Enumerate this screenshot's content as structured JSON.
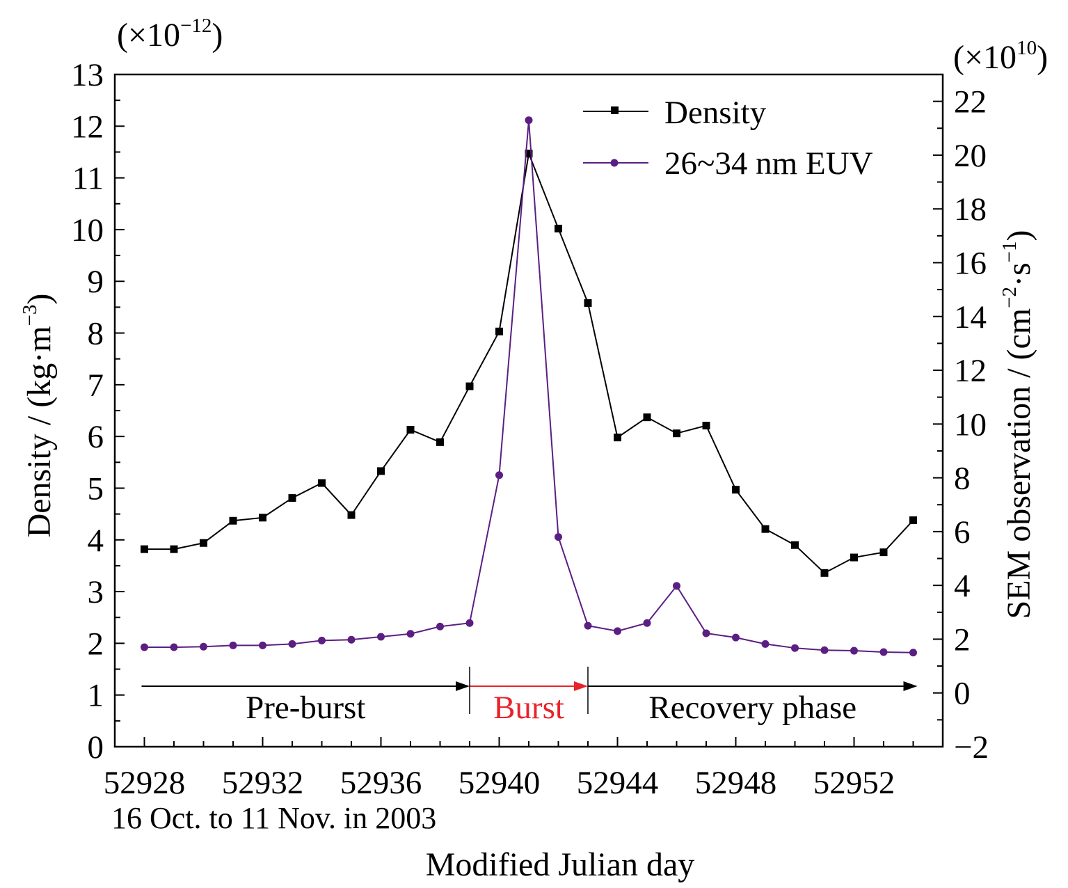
{
  "chart_data": {
    "type": "line",
    "xlabel": "Modified Julian day",
    "xsublabel": "16 Oct. to 11 Nov. in 2003",
    "ylabel": "Density / (kg·m",
    "ylabel_exp": "−3",
    "ylabel_end": ")",
    "y_multiplier": {
      "base": "(×10",
      "exp": "−12",
      "end": ")"
    },
    "y2label": "SEM observation / (cm",
    "y2label_exp1": "−2",
    "y2label_mid": "·s",
    "y2label_exp2": "−1",
    "y2label_end": ")",
    "y2_multiplier": {
      "base": "(×10",
      "exp": "10",
      "end": ")"
    },
    "xlim": [
      52927,
      52955
    ],
    "ylim": [
      0,
      13
    ],
    "y2lim": [
      -2,
      23
    ],
    "x_ticks": [
      52928,
      52932,
      52936,
      52940,
      52944,
      52948,
      52952
    ],
    "y_ticks": [
      0,
      1,
      2,
      3,
      4,
      5,
      6,
      7,
      8,
      9,
      10,
      11,
      12,
      13
    ],
    "y2_ticks": [
      -2,
      0,
      2,
      4,
      6,
      8,
      10,
      12,
      14,
      16,
      18,
      20,
      22
    ],
    "y2_tick_labels": [
      "−2",
      "0",
      "2",
      "4",
      "6",
      "8",
      "10",
      "12",
      "14",
      "16",
      "18",
      "20",
      "22"
    ],
    "legend_position": "top-right",
    "grid": false,
    "series": [
      {
        "name": "Density",
        "axis": "left",
        "color": "#000000",
        "marker": "square",
        "x": [
          52928,
          52929,
          52930,
          52931,
          52932,
          52933,
          52934,
          52935,
          52936,
          52937,
          52938,
          52939,
          52940,
          52941,
          52942,
          52943,
          52944,
          52945,
          52946,
          52947,
          52948,
          52949,
          52950,
          52951,
          52952,
          52953,
          52954
        ],
        "values": [
          3.82,
          3.82,
          3.94,
          4.37,
          4.43,
          4.81,
          5.1,
          4.48,
          5.33,
          6.13,
          5.89,
          6.97,
          8.03,
          11.47,
          10.02,
          8.58,
          5.98,
          6.37,
          6.06,
          6.21,
          4.97,
          4.21,
          3.9,
          3.36,
          3.66,
          3.76,
          4.38
        ]
      },
      {
        "name": "26~34 nm EUV",
        "axis": "right",
        "color": "#5b1e82",
        "marker": "circle",
        "x": [
          52928,
          52929,
          52930,
          52931,
          52932,
          52933,
          52934,
          52935,
          52936,
          52937,
          52938,
          52939,
          52940,
          52941,
          52942,
          52943,
          52944,
          52945,
          52946,
          52947,
          52948,
          52949,
          52950,
          52951,
          52952,
          52953,
          52954
        ],
        "values": [
          1.7,
          1.7,
          1.72,
          1.77,
          1.77,
          1.82,
          1.95,
          1.98,
          2.09,
          2.2,
          2.47,
          2.6,
          8.1,
          21.3,
          5.8,
          2.5,
          2.3,
          2.6,
          3.98,
          2.22,
          2.06,
          1.82,
          1.67,
          1.59,
          1.57,
          1.52,
          1.5
        ]
      }
    ],
    "phases": [
      {
        "label": "Pre-burst",
        "from": 52928,
        "to": 52939,
        "color": "#000000"
      },
      {
        "label": "Burst",
        "from": 52939,
        "to": 52943,
        "color": "#e8232a"
      },
      {
        "label": "Recovery phase",
        "from": 52943,
        "to": 52954,
        "color": "#000000"
      }
    ]
  }
}
